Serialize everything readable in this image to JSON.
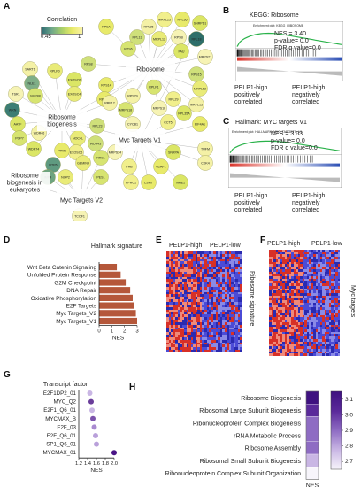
{
  "panels": {
    "a": "A",
    "b": "B",
    "c": "C",
    "d": "D",
    "e": "E",
    "f": "F",
    "g": "G",
    "h": "H"
  },
  "panel_a": {
    "colorbar_title": "Correlation",
    "colorbar_min": "0.45",
    "colorbar_max": "1",
    "hubs": [
      {
        "id": "ribosome",
        "label": "Ribosome"
      },
      {
        "id": "ribosome_biogenesis",
        "label": "Ribosome\nbiogenesis"
      },
      {
        "id": "myc_v1",
        "label": "Myc Targets V1"
      },
      {
        "id": "myc_v2",
        "label": "Myc Targets V2"
      },
      {
        "id": "rib_euk",
        "label": "Ribosome\nbiogenesis in\neukaryotes"
      }
    ],
    "genes": [
      {
        "label": "MRPL23"
      },
      {
        "label": "RPL36"
      },
      {
        "label": "SNRPD1"
      },
      {
        "label": "RPL35"
      },
      {
        "label": "RPL13"
      },
      {
        "label": "MRPL12"
      },
      {
        "label": "RPSB"
      },
      {
        "label": "RPS6"
      },
      {
        "label": "RPL18"
      },
      {
        "label": "RPSA"
      },
      {
        "label": "FAU"
      },
      {
        "label": "SART1"
      },
      {
        "label": "RPS15"
      },
      {
        "label": "RPLP0"
      },
      {
        "label": "MRPS21"
      },
      {
        "label": "RPLP1"
      },
      {
        "label": "NLE1"
      },
      {
        "label": "RPS14"
      },
      {
        "label": "EXOSC6"
      },
      {
        "label": "RPS29"
      },
      {
        "label": "RPS8"
      },
      {
        "label": "MRPL52"
      },
      {
        "label": "TSR1"
      },
      {
        "label": "NUP88"
      },
      {
        "label": "RPL29"
      },
      {
        "label": "RPS19"
      },
      {
        "label": "RPL35A"
      },
      {
        "label": "MRPL13"
      },
      {
        "label": "WRN"
      },
      {
        "label": "EXOSC4"
      },
      {
        "label": "MRPS16"
      },
      {
        "label": "MRPS18"
      },
      {
        "label": "CCT5"
      },
      {
        "label": "EIF4A1"
      },
      {
        "label": "AATF"
      },
      {
        "label": "WDR46"
      },
      {
        "label": "RPL23"
      },
      {
        "label": "NOC4L"
      },
      {
        "label": "CYCB1"
      },
      {
        "label": "POP7"
      },
      {
        "label": "EXOSC5"
      },
      {
        "label": "PPAN"
      },
      {
        "label": "WDR74"
      },
      {
        "label": "TUFM"
      },
      {
        "label": "UTP6"
      },
      {
        "label": "GEMIN4"
      },
      {
        "label": "MRPS34"
      },
      {
        "label": "RRS1"
      },
      {
        "label": "PHB"
      },
      {
        "label": "U2AF1"
      },
      {
        "label": "SNRPA"
      },
      {
        "label": "CDK4"
      },
      {
        "label": "IMP4"
      },
      {
        "label": "NOP2"
      },
      {
        "label": "TCOF1"
      },
      {
        "label": "PES1"
      },
      {
        "label": "PPRC1"
      },
      {
        "label": "LSM7"
      },
      {
        "label": "NME1"
      },
      {
        "label": "RRP12"
      },
      {
        "label": "WDR43"
      }
    ]
  },
  "panel_b": {
    "title": "KEGG: Ribosome",
    "subtitle": "Enrichment plot: KEGG_RIBOSOME",
    "stats": [
      "NES = 3.40",
      "p-value= 0.0",
      "FDR q value=0.0"
    ],
    "left_label": "PELP1-high\npositively\ncorrelated",
    "right_label": "PELP1-high\nnegatively\ncorrelated"
  },
  "panel_c": {
    "title": "Hallmark: MYC targets V1",
    "subtitle": "Enrichment plot: HALLMARK_MYC_TARGETS_V1",
    "stats": [
      "NES = 3.03",
      "p-value= 0.0",
      "FDR q value=0.0"
    ],
    "left_label": "PELP1-high\npositively\ncorrelated",
    "right_label": "PELP1-high\nnegatively\ncorrelated"
  },
  "panel_e": {
    "col_label_left": "PELP1-high",
    "col_label_right": "PELP1-low",
    "side_label": "Ribosome signature"
  },
  "panel_f": {
    "col_label_left": "PELP1-high",
    "col_label_right": "PELP1-low",
    "side_label": "Myc targets"
  },
  "chart_data": [
    {
      "type": "bar",
      "title": "Hallmark signature",
      "xlabel": "NES",
      "ylabel": "",
      "orientation": "horizontal",
      "categories": [
        "Wnt Beta Catenin Signaling",
        "Unfolded Protein Response",
        "G2M Checkpoint",
        "DNA Repair",
        "Oxidative Phosphorylation",
        "E2F Targets",
        "Myc Targets_V2",
        "Myc Targets_V1"
      ],
      "values": [
        1.4,
        1.7,
        2.1,
        2.45,
        2.65,
        2.75,
        2.9,
        3.0
      ],
      "xlim": [
        0,
        3
      ],
      "xticks": [
        "0",
        "1",
        "2",
        "3"
      ],
      "color": "#b5573a"
    },
    {
      "type": "scatter",
      "title": "Transcript factor",
      "xlabel": "NES",
      "categories": [
        "E2F1DP2_01",
        "MYC_Q2",
        "E2F1_Q6_01",
        "MYCMAX_B",
        "E2F_03",
        "E2F_Q6_01",
        "SP1_Q6_01",
        "MYCMAX_01"
      ],
      "values": [
        1.45,
        1.48,
        1.5,
        1.52,
        1.55,
        1.58,
        1.6,
        2.0
      ],
      "colors": [
        "#c9b6e4",
        "#6a3d9a",
        "#c9b6e4",
        "#7b52ab",
        "#a98ad0",
        "#b9a0da",
        "#b9a0da",
        "#4a1486"
      ],
      "xlim": [
        1.2,
        2.0
      ],
      "xticks": [
        "1.2",
        "1.4",
        "1.6",
        "1.8",
        "2.0"
      ]
    },
    {
      "type": "heatmap",
      "title": "",
      "categories": [
        "Ribosome Biogenesis",
        "Ribosomal Large Subunit Biogenesis",
        "Ribonucleoprotein Complex Biogenesis",
        "rRNA Metabolic Process",
        "Ribosome Assembly",
        "Ribosomal Small Subunit Biogenesis",
        "Ribonucleoprotein Complex Subunit Organization"
      ],
      "column_label": "NES",
      "values": [
        3.1,
        3.05,
        2.95,
        2.9,
        2.85,
        2.75,
        2.65
      ],
      "colorbar_ticks": [
        "3.1",
        "3.0",
        "2.9",
        "2.8",
        "2.7"
      ],
      "colorbar_min": 2.65,
      "colorbar_max": 3.15
    }
  ]
}
